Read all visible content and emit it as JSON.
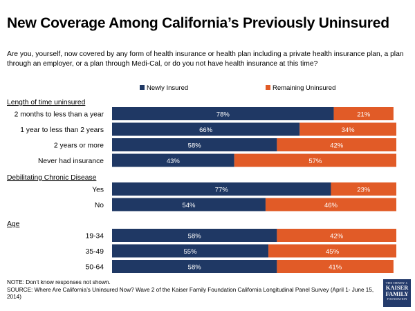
{
  "title": "New Coverage Among California’s Previously Uninsured",
  "question": "Are you, yourself, now covered by any form of health insurance or health plan including a private health insurance plan, a plan through an employer, or a plan through Medi-Cal, or do you not have health insurance at this time?",
  "footer": {
    "note": "NOTE: Don’t know responses not shown.",
    "source": "SOURCE: Where Are California’s Uninsured Now? Wave 2 of the Kaiser Family Foundation California Longitudinal Panel Survey (April 1- June 15, 2014)"
  },
  "logo": {
    "line1": "THE HENRY J.",
    "line2": "KAISER",
    "line3": "FAMILY",
    "line4": "FOUNDATION"
  },
  "colors": {
    "newly": "#1f3864",
    "remaining": "#e15b27"
  },
  "chart_data": {
    "type": "bar",
    "orientation": "horizontal",
    "stacked": true,
    "xlim": [
      0,
      100
    ],
    "value_format": "percent",
    "legend": [
      {
        "name": "Newly Insured",
        "color": "#1f3864"
      },
      {
        "name": "Remaining Uninsured",
        "color": "#e15b27"
      }
    ],
    "groups": [
      {
        "label": "Length of time uninsured",
        "rows": [
          {
            "category": "2 months to less than a year",
            "newly": 78,
            "remaining": 21
          },
          {
            "category": "1 year to less than 2 years",
            "newly": 66,
            "remaining": 34
          },
          {
            "category": "2 years or more",
            "newly": 58,
            "remaining": 42
          },
          {
            "category": "Never had insurance",
            "newly": 43,
            "remaining": 57
          }
        ]
      },
      {
        "label": "Debilitating Chronic Disease",
        "rows": [
          {
            "category": "Yes",
            "newly": 77,
            "remaining": 23
          },
          {
            "category": "No",
            "newly": 54,
            "remaining": 46
          }
        ]
      },
      {
        "label": "Age",
        "rows": [
          {
            "category": "19-34",
            "newly": 58,
            "remaining": 42
          },
          {
            "category": "35-49",
            "newly": 55,
            "remaining": 45
          },
          {
            "category": "50-64",
            "newly": 58,
            "remaining": 41
          }
        ]
      }
    ]
  }
}
